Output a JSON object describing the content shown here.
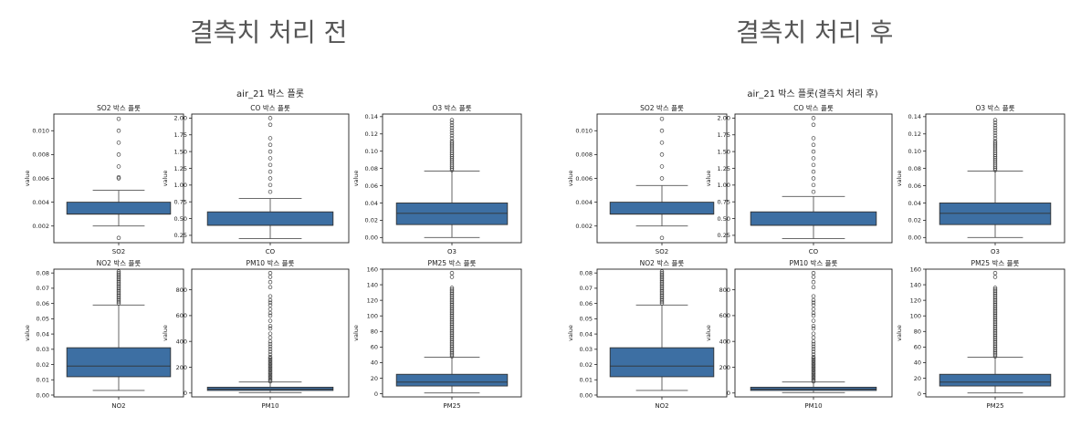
{
  "panels": [
    {
      "heading": "결측치 처리 전",
      "figure_title": "air_21 박스 플롯"
    },
    {
      "heading": "결측치 처리 후",
      "figure_title": "air_21 박스 플롯(결측치 처리 후)"
    }
  ],
  "colors": {
    "box_fill": "#3d6fa3",
    "axes": "#222222",
    "outlier": "#444444"
  },
  "chart_data": [
    {
      "type": "box",
      "figure": "결측치 처리 전",
      "subplots": [
        {
          "title": "SO2 박스 플롯",
          "xlabel": "SO2",
          "ylabel": "value",
          "ylim": [
            0.0006,
            0.0114
          ],
          "yticks": [
            0.002,
            0.004,
            0.006,
            0.008,
            0.01
          ],
          "ytick_labels": [
            "0.002",
            "0.004",
            "0.006",
            "0.008",
            "0.010"
          ],
          "q1": 0.003,
          "median": 0.003,
          "q3": 0.004,
          "whisker_low": 0.002,
          "whisker_high": 0.005,
          "outliers": [
            0.001,
            0.006,
            0.0061,
            0.007,
            0.008,
            0.009,
            0.01,
            0.011
          ]
        },
        {
          "title": "CO 박스 플롯",
          "xlabel": "CO",
          "ylabel": "value",
          "ylim": [
            0.14,
            2.06
          ],
          "yticks": [
            0.25,
            0.5,
            0.75,
            1.0,
            1.25,
            1.5,
            1.75,
            2.0
          ],
          "ytick_labels": [
            "0.25",
            "0.50",
            "0.75",
            "1.00",
            "1.25",
            "1.50",
            "1.75",
            "2.00"
          ],
          "q1": 0.4,
          "median": 0.4,
          "q3": 0.6,
          "whisker_low": 0.2,
          "whisker_high": 0.8,
          "outliers": [
            0.9,
            1.0,
            1.1,
            1.2,
            1.3,
            1.4,
            1.5,
            1.6,
            1.7,
            1.9,
            2.0
          ]
        },
        {
          "title": "O3 박스 플롯",
          "xlabel": "O3",
          "ylabel": "value",
          "ylim": [
            -0.006,
            0.143
          ],
          "yticks": [
            0.0,
            0.02,
            0.04,
            0.06,
            0.08,
            0.1,
            0.12,
            0.14
          ],
          "ytick_labels": [
            "0.00",
            "0.02",
            "0.04",
            "0.06",
            "0.08",
            "0.10",
            "0.12",
            "0.14"
          ],
          "q1": 0.015,
          "median": 0.028,
          "q3": 0.04,
          "whisker_low": 0.0,
          "whisker_high": 0.077,
          "outliers": [
            0.078,
            0.08,
            0.082,
            0.084,
            0.086,
            0.088,
            0.09,
            0.092,
            0.094,
            0.096,
            0.098,
            0.1,
            0.102,
            0.104,
            0.106,
            0.108,
            0.11,
            0.112,
            0.115,
            0.118,
            0.121,
            0.124,
            0.127,
            0.13,
            0.133,
            0.136
          ]
        },
        {
          "title": "NO2 박스 플롯",
          "xlabel": "NO2",
          "ylabel": "value",
          "ylim": [
            -0.0012,
            0.0825
          ],
          "yticks": [
            0.0,
            0.01,
            0.02,
            0.03,
            0.04,
            0.05,
            0.06,
            0.07,
            0.08
          ],
          "ytick_labels": [
            "0.00",
            "0.01",
            "0.02",
            "0.03",
            "0.04",
            "0.05",
            "0.06",
            "0.07",
            "0.08"
          ],
          "q1": 0.012,
          "median": 0.019,
          "q3": 0.031,
          "whisker_low": 0.003,
          "whisker_high": 0.059,
          "outliers": [
            0.06,
            0.061,
            0.062,
            0.063,
            0.064,
            0.065,
            0.066,
            0.067,
            0.068,
            0.069,
            0.07,
            0.071,
            0.072,
            0.073,
            0.074,
            0.075,
            0.076,
            0.077,
            0.078,
            0.079,
            0.08,
            0.081
          ]
        },
        {
          "title": "PM10 박스 플롯",
          "xlabel": "PM10",
          "ylabel": "value",
          "ylim": [
            -30,
            960
          ],
          "yticks": [
            0,
            200,
            400,
            600,
            800
          ],
          "ytick_labels": [
            "0",
            "200",
            "400",
            "600",
            "800"
          ],
          "q1": 20,
          "median": 30,
          "q3": 45,
          "whisker_low": 3,
          "whisker_high": 85,
          "outliers": [
            90,
            100,
            110,
            120,
            130,
            140,
            150,
            160,
            170,
            180,
            190,
            200,
            210,
            220,
            230,
            240,
            250,
            260,
            270,
            280,
            300,
            320,
            340,
            360,
            380,
            400,
            430,
            460,
            500,
            520,
            560,
            600,
            620,
            650,
            680,
            700,
            720,
            750,
            820,
            860,
            900,
            930
          ]
        },
        {
          "title": "PM25 박스 플롯",
          "xlabel": "PM25",
          "ylabel": "value",
          "ylim": [
            -4,
            160
          ],
          "yticks": [
            0,
            20,
            40,
            60,
            80,
            100,
            120,
            140,
            160
          ],
          "ytick_labels": [
            "0",
            "20",
            "40",
            "60",
            "80",
            "100",
            "120",
            "140",
            "160"
          ],
          "q1": 10,
          "median": 15,
          "q3": 25,
          "whisker_low": 1,
          "whisker_high": 47,
          "outliers": [
            48,
            50,
            52,
            54,
            56,
            58,
            60,
            62,
            64,
            66,
            68,
            70,
            72,
            74,
            76,
            78,
            80,
            82,
            84,
            86,
            88,
            90,
            92,
            94,
            96,
            98,
            100,
            102,
            104,
            106,
            108,
            110,
            112,
            114,
            116,
            118,
            120,
            122,
            124,
            126,
            128,
            130,
            132,
            134,
            136,
            150,
            155
          ]
        }
      ]
    },
    {
      "type": "box",
      "figure": "결측치 처리 후",
      "subplots": [
        {
          "title": "SO2 박스 플롯",
          "xlabel": "SO2",
          "ylabel": "value",
          "ylim": [
            0.0006,
            0.0114
          ],
          "yticks": [
            0.002,
            0.004,
            0.006,
            0.008,
            0.01
          ],
          "ytick_labels": [
            "0.002",
            "0.004",
            "0.006",
            "0.008",
            "0.010"
          ],
          "q1": 0.003,
          "median": 0.003,
          "q3": 0.004,
          "whisker_low": 0.002,
          "whisker_high": 0.0054,
          "outliers": [
            0.001,
            0.006,
            0.007,
            0.008,
            0.009,
            0.01,
            0.011
          ]
        },
        {
          "title": "CO 박스 플롯",
          "xlabel": "CO",
          "ylabel": "value",
          "ylim": [
            0.14,
            2.06
          ],
          "yticks": [
            0.25,
            0.5,
            0.75,
            1.0,
            1.25,
            1.5,
            1.75,
            2.0
          ],
          "ytick_labels": [
            "0.25",
            "0.50",
            "0.75",
            "1.00",
            "1.25",
            "1.50",
            "1.75",
            "2.00"
          ],
          "q1": 0.4,
          "median": 0.4,
          "q3": 0.6,
          "whisker_low": 0.2,
          "whisker_high": 0.83,
          "outliers": [
            0.9,
            1.0,
            1.1,
            1.2,
            1.3,
            1.4,
            1.5,
            1.6,
            1.7,
            1.9,
            2.0
          ]
        },
        {
          "title": "O3 박스 플롯",
          "xlabel": "O3",
          "ylabel": "value",
          "ylim": [
            -0.006,
            0.143
          ],
          "yticks": [
            0.0,
            0.02,
            0.04,
            0.06,
            0.08,
            0.1,
            0.12,
            0.14
          ],
          "ytick_labels": [
            "0.00",
            "0.02",
            "0.04",
            "0.06",
            "0.08",
            "0.10",
            "0.12",
            "0.14"
          ],
          "q1": 0.015,
          "median": 0.028,
          "q3": 0.04,
          "whisker_low": 0.0,
          "whisker_high": 0.077,
          "outliers": [
            0.078,
            0.08,
            0.082,
            0.084,
            0.086,
            0.088,
            0.09,
            0.092,
            0.094,
            0.096,
            0.098,
            0.1,
            0.102,
            0.104,
            0.106,
            0.108,
            0.11,
            0.112,
            0.115,
            0.118,
            0.121,
            0.124,
            0.127,
            0.13,
            0.133,
            0.136
          ]
        },
        {
          "title": "NO2 박스 플롯",
          "xlabel": "NO2",
          "ylabel": "value",
          "ylim": [
            -0.0012,
            0.0825
          ],
          "yticks": [
            0.0,
            0.01,
            0.02,
            0.03,
            0.04,
            0.05,
            0.06,
            0.07,
            0.08
          ],
          "ytick_labels": [
            "0.00",
            "0.01",
            "0.02",
            "0.03",
            "0.04",
            "0.05",
            "0.06",
            "0.07",
            "0.08"
          ],
          "q1": 0.012,
          "median": 0.019,
          "q3": 0.031,
          "whisker_low": 0.003,
          "whisker_high": 0.059,
          "outliers": [
            0.06,
            0.061,
            0.062,
            0.063,
            0.064,
            0.065,
            0.066,
            0.067,
            0.068,
            0.069,
            0.07,
            0.071,
            0.072,
            0.073,
            0.074,
            0.075,
            0.076,
            0.077,
            0.078,
            0.079,
            0.08,
            0.081
          ]
        },
        {
          "title": "PM10 박스 플롯",
          "xlabel": "PM10",
          "ylabel": "value",
          "ylim": [
            -30,
            960
          ],
          "yticks": [
            0,
            200,
            400,
            600,
            800
          ],
          "ytick_labels": [
            "0",
            "200",
            "400",
            "600",
            "800"
          ],
          "q1": 20,
          "median": 30,
          "q3": 45,
          "whisker_low": 3,
          "whisker_high": 85,
          "outliers": [
            90,
            100,
            110,
            120,
            130,
            140,
            150,
            160,
            170,
            180,
            190,
            200,
            210,
            220,
            230,
            240,
            250,
            260,
            270,
            280,
            300,
            320,
            340,
            360,
            380,
            400,
            430,
            460,
            500,
            520,
            560,
            600,
            620,
            650,
            680,
            700,
            720,
            750,
            820,
            860,
            900,
            930
          ]
        },
        {
          "title": "PM25 박스 플롯",
          "xlabel": "PM25",
          "ylabel": "value",
          "ylim": [
            -4,
            160
          ],
          "yticks": [
            0,
            20,
            40,
            60,
            80,
            100,
            120,
            140,
            160
          ],
          "ytick_labels": [
            "0",
            "20",
            "40",
            "60",
            "80",
            "100",
            "120",
            "140",
            "160"
          ],
          "q1": 10,
          "median": 15,
          "q3": 25,
          "whisker_low": 1,
          "whisker_high": 47,
          "outliers": [
            48,
            50,
            52,
            54,
            56,
            58,
            60,
            62,
            64,
            66,
            68,
            70,
            72,
            74,
            76,
            78,
            80,
            82,
            84,
            86,
            88,
            90,
            92,
            94,
            96,
            98,
            100,
            102,
            104,
            106,
            108,
            110,
            112,
            114,
            116,
            118,
            120,
            122,
            124,
            126,
            128,
            130,
            132,
            134,
            136,
            150,
            155
          ]
        }
      ]
    }
  ]
}
